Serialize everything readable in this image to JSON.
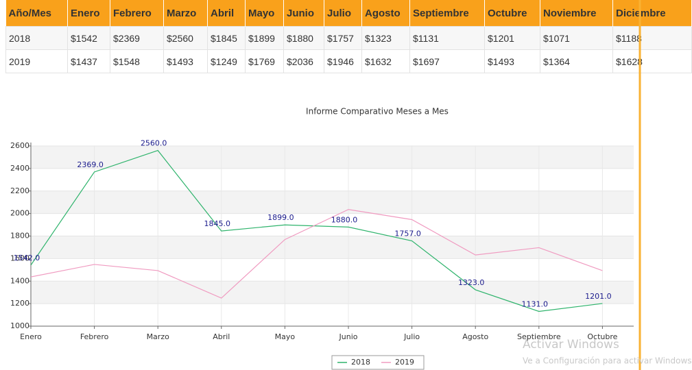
{
  "table": {
    "header": [
      "Año/Mes",
      "Enero",
      "Febrero",
      "Marzo",
      "Abril",
      "Mayo",
      "Junio",
      "Julio",
      "Agosto",
      "Septiembre",
      "Octubre",
      "Noviembre",
      "Diciembre"
    ],
    "rows": [
      [
        "2018",
        "$1542",
        "$2369",
        "$2560",
        "$1845",
        "$1899",
        "$1880",
        "$1757",
        "$1323",
        "$1131",
        "$1201",
        "$1071",
        "$1188"
      ],
      [
        "2019",
        "$1437",
        "$1548",
        "$1493",
        "$1249",
        "$1769",
        "$2036",
        "$1946",
        "$1632",
        "$1697",
        "$1493",
        "$1364",
        "$1628"
      ]
    ]
  },
  "chart_data": {
    "type": "line",
    "title": "Informe Comparativo Meses a Mes",
    "categories": [
      "Enero",
      "Febrero",
      "Marzo",
      "Abril",
      "Mayo",
      "Junio",
      "Julio",
      "Agosto",
      "Septiembre",
      "Octubre"
    ],
    "series": [
      {
        "name": "2018",
        "color": "#2db36b",
        "values": [
          1542,
          2369,
          2560,
          1845,
          1899,
          1880,
          1757,
          1323,
          1131,
          1201
        ],
        "value_labels": [
          "1542.0",
          "2369.0",
          "2560.0",
          "1845.0",
          "1899.0",
          "1880.0",
          "1757.0",
          "1323.0",
          "1131.0",
          "1201.0"
        ]
      },
      {
        "name": "2019",
        "color": "#f09ac0",
        "values": [
          1437,
          1548,
          1493,
          1249,
          1769,
          2036,
          1946,
          1632,
          1697,
          1493
        ]
      }
    ],
    "ylim": [
      1000,
      2600
    ],
    "yticks": [
      1000,
      1200,
      1400,
      1600,
      1800,
      2000,
      2200,
      2400,
      2600
    ],
    "grid": true
  },
  "watermark": {
    "title": "Activar Windows",
    "subtitle": "Ve a Configuración para activar Windows"
  }
}
